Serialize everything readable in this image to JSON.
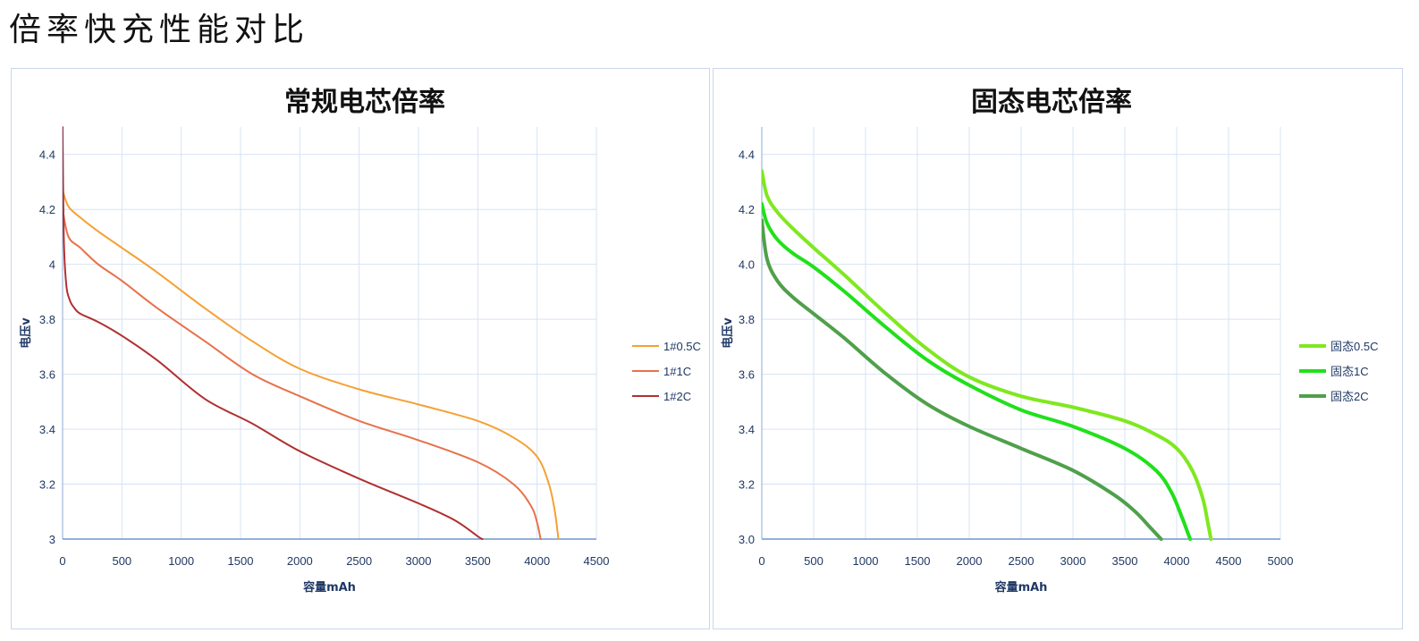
{
  "page": {
    "title": "倍率快充性能对比"
  },
  "chart_data": [
    {
      "type": "line",
      "title": "常规电芯倍率",
      "xlabel": "容量mAh",
      "ylabel": "电压v",
      "xlim": [
        0,
        4500
      ],
      "ylim": [
        3,
        4.5
      ],
      "xticks": [
        0,
        500,
        1000,
        1500,
        2000,
        2500,
        3000,
        3500,
        4000,
        4500
      ],
      "xtick_labels": [
        "0",
        "500",
        "1000",
        "1500",
        "2000",
        "2500",
        "3000",
        "3500",
        "4000",
        "4500"
      ],
      "yticks": [
        3,
        3.2,
        3.4,
        3.6,
        3.8,
        4,
        4.2,
        4.4
      ],
      "ytick_labels": [
        "3",
        "3.2",
        "3.4",
        "3.6",
        "3.8",
        "4",
        "4.2",
        "4.4"
      ],
      "grid": true,
      "legend_position": "right",
      "series": [
        {
          "name": "1#0.5C",
          "color": "#f5a033",
          "x": [
            0,
            50,
            150,
            300,
            500,
            800,
            1200,
            1600,
            2000,
            2500,
            3000,
            3500,
            3800,
            4000,
            4100,
            4150,
            4180
          ],
          "y": [
            4.27,
            4.21,
            4.17,
            4.12,
            4.06,
            3.97,
            3.84,
            3.72,
            3.62,
            3.545,
            3.49,
            3.43,
            3.37,
            3.3,
            3.2,
            3.1,
            3.0
          ]
        },
        {
          "name": "1#1C",
          "color": "#e8714a",
          "x": [
            0,
            50,
            150,
            300,
            500,
            800,
            1200,
            1600,
            2000,
            2500,
            3000,
            3500,
            3800,
            3950,
            4000,
            4030
          ],
          "y": [
            4.2,
            4.1,
            4.06,
            4.0,
            3.94,
            3.84,
            3.72,
            3.6,
            3.52,
            3.43,
            3.36,
            3.28,
            3.2,
            3.12,
            3.06,
            3.0
          ]
        },
        {
          "name": "1#2C",
          "color": "#b03030",
          "x": [
            0,
            10,
            30,
            60,
            100,
            150,
            300,
            500,
            800,
            1200,
            1600,
            2000,
            2500,
            3000,
            3300,
            3500,
            3540
          ],
          "y": [
            4.5,
            4.1,
            3.93,
            3.87,
            3.84,
            3.82,
            3.79,
            3.74,
            3.65,
            3.51,
            3.42,
            3.32,
            3.22,
            3.13,
            3.07,
            3.01,
            3.0
          ]
        }
      ]
    },
    {
      "type": "line",
      "title": "固态电芯倍率",
      "xlabel": "容量mAh",
      "ylabel": "电压v",
      "xlim": [
        0,
        5000
      ],
      "ylim": [
        3.0,
        4.5
      ],
      "xticks": [
        0,
        500,
        1000,
        1500,
        2000,
        2500,
        3000,
        3500,
        4000,
        4500,
        5000
      ],
      "xtick_labels": [
        "0",
        "500",
        "1000",
        "1500",
        "2000",
        "2500",
        "3000",
        "3500",
        "4000",
        "4500",
        "5000"
      ],
      "yticks": [
        3.0,
        3.2,
        3.4,
        3.6,
        3.8,
        4.0,
        4.2,
        4.4
      ],
      "ytick_labels": [
        "3.0",
        "3.2",
        "3.4",
        "3.6",
        "3.8",
        "4.0",
        "4.2",
        "4.4"
      ],
      "grid": true,
      "legend_position": "right",
      "series": [
        {
          "name": "固态0.5C",
          "color": "#7fe81f",
          "x": [
            0,
            50,
            150,
            300,
            500,
            800,
            1200,
            1600,
            2000,
            2500,
            3000,
            3500,
            3800,
            4000,
            4150,
            4250,
            4300,
            4330
          ],
          "y": [
            4.34,
            4.25,
            4.19,
            4.13,
            4.06,
            3.96,
            3.82,
            3.69,
            3.59,
            3.52,
            3.48,
            3.43,
            3.38,
            3.33,
            3.25,
            3.15,
            3.06,
            3.0
          ]
        },
        {
          "name": "固态1C",
          "color": "#21e01a",
          "x": [
            0,
            50,
            150,
            300,
            500,
            800,
            1200,
            1600,
            2000,
            2500,
            3000,
            3500,
            3800,
            3950,
            4050,
            4100,
            4130
          ],
          "y": [
            4.22,
            4.15,
            4.09,
            4.04,
            3.99,
            3.9,
            3.77,
            3.65,
            3.56,
            3.47,
            3.41,
            3.33,
            3.25,
            3.17,
            3.08,
            3.03,
            3.0
          ]
        },
        {
          "name": "固态2C",
          "color": "#4fa04a",
          "x": [
            0,
            50,
            150,
            300,
            500,
            800,
            1200,
            1600,
            2000,
            2500,
            3000,
            3400,
            3600,
            3750,
            3850
          ],
          "y": [
            4.16,
            4.02,
            3.94,
            3.88,
            3.82,
            3.73,
            3.6,
            3.49,
            3.41,
            3.33,
            3.25,
            3.16,
            3.1,
            3.04,
            3.0
          ]
        }
      ]
    }
  ]
}
